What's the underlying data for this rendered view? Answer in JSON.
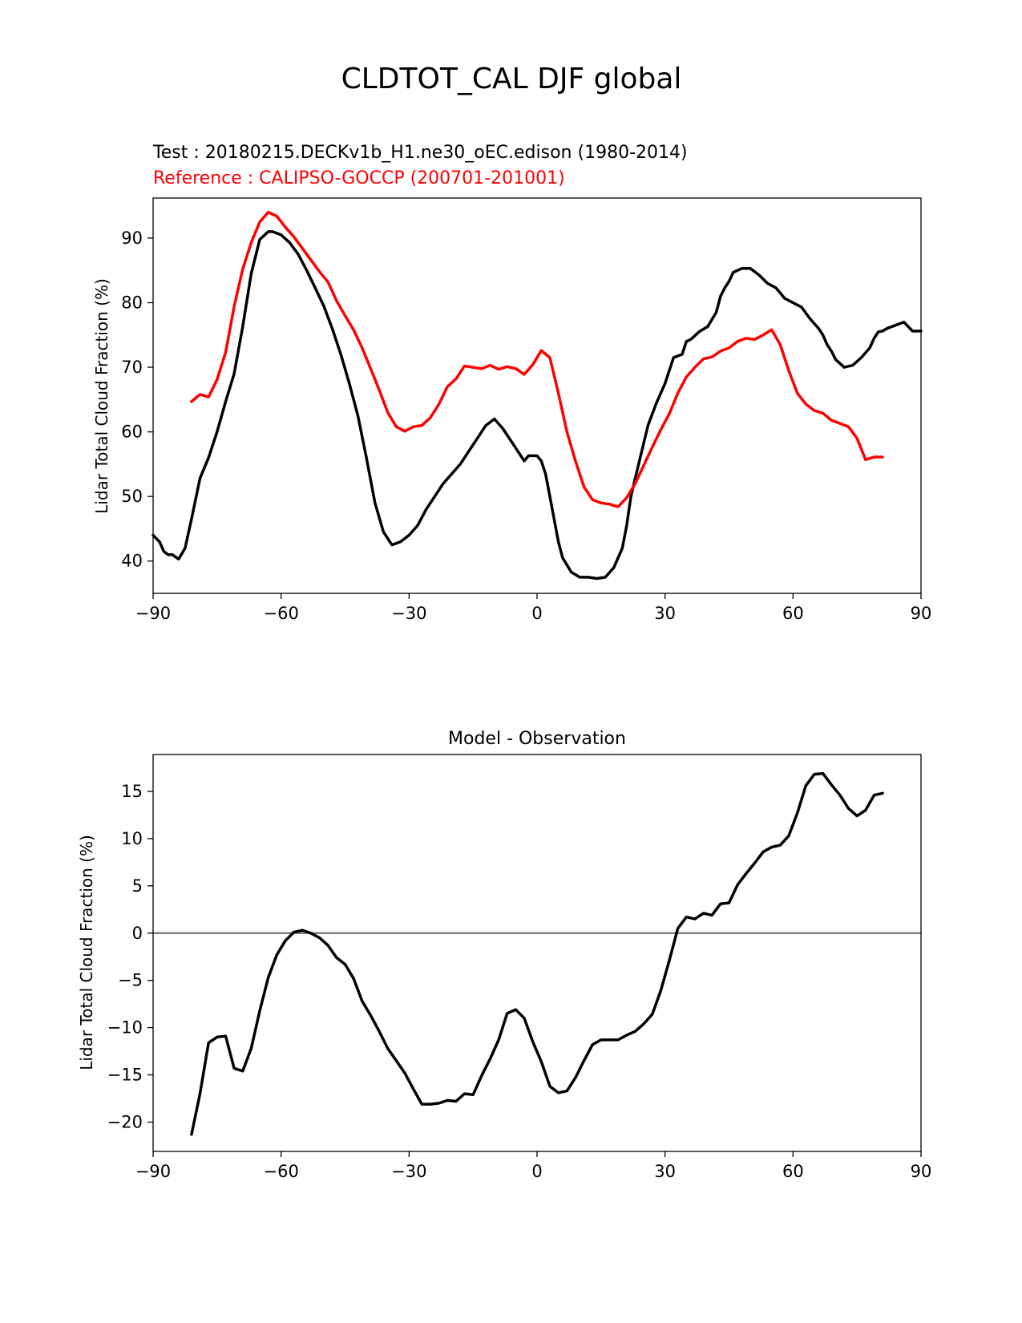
{
  "figure": {
    "suptitle": "CLDTOT_CAL DJF global"
  },
  "colors": {
    "test": "#000000",
    "reference": "#ff0000",
    "zero_line": "#808080"
  },
  "chart_data": [
    {
      "type": "line",
      "test_label": "Test : 20180215.DECKv1b_H1.ne30_oEC.edison (1980-2014)",
      "reference_label": "Reference : CALIPSO-GOCCP (200701-201001)",
      "xlabel": "",
      "ylabel": "Lidar Total Cloud Fraction (%)",
      "xlim": [
        -90,
        90
      ],
      "ylim": [
        35,
        96.2
      ],
      "xticks": [
        -90,
        -60,
        -30,
        0,
        30,
        60,
        90
      ],
      "xtick_labels": [
        "−90",
        "−60",
        "−30",
        "0",
        "30",
        "60",
        "90"
      ],
      "yticks": [
        40,
        50,
        60,
        70,
        80,
        90
      ],
      "ytick_labels": [
        "40",
        "50",
        "60",
        "70",
        "80",
        "90"
      ],
      "series": [
        {
          "name": "test",
          "x": [
            -90,
            -88.5,
            -87.5,
            -86.5,
            -85.5,
            -84,
            -82.5,
            -81,
            -79,
            -77,
            -75,
            -73,
            -71,
            -69,
            -67,
            -65,
            -63,
            -62,
            -60,
            -58,
            -56,
            -54,
            -52,
            -50,
            -48,
            -46,
            -44,
            -42,
            -40,
            -38,
            -36,
            -34,
            -32,
            -30,
            -28,
            -26,
            -24,
            -22,
            -20,
            -18,
            -16,
            -14,
            -12,
            -10,
            -8,
            -6,
            -4,
            -3,
            -2,
            -1,
            0,
            1,
            2,
            3,
            4,
            5,
            6,
            8,
            10,
            12,
            14,
            16,
            18,
            20,
            21,
            22,
            24,
            26,
            28,
            30,
            32,
            34,
            35,
            36,
            38,
            40,
            42,
            43,
            44,
            45,
            46,
            48,
            50,
            52,
            54,
            56,
            57,
            58,
            60,
            62,
            64,
            66,
            67,
            68,
            69,
            70,
            72,
            74,
            76,
            78,
            79,
            80,
            81,
            82,
            84,
            86,
            88,
            90
          ],
          "values": [
            44.0,
            43.0,
            41.5,
            41.0,
            41.0,
            40.3,
            42.0,
            46.5,
            52.8,
            56.0,
            60.0,
            64.7,
            69.0,
            76.3,
            84.5,
            89.8,
            91.0,
            91.0,
            90.5,
            89.3,
            87.5,
            85.0,
            82.3,
            79.5,
            76.0,
            72.0,
            67.5,
            62.5,
            56.0,
            49.0,
            44.5,
            42.5,
            43.0,
            44.0,
            45.5,
            48.0,
            50.0,
            52.0,
            53.5,
            55.0,
            57.0,
            59.0,
            61.0,
            62.0,
            60.5,
            58.5,
            56.5,
            55.5,
            56.3,
            56.3,
            56.3,
            55.5,
            53.5,
            50.0,
            46.5,
            43.0,
            40.5,
            38.3,
            37.5,
            37.5,
            37.3,
            37.5,
            39.0,
            42.0,
            45.5,
            50.0,
            55.5,
            61.0,
            64.5,
            67.5,
            71.5,
            72.0,
            74.0,
            74.3,
            75.5,
            76.3,
            78.5,
            81.0,
            82.3,
            83.3,
            84.7,
            85.3,
            85.3,
            84.3,
            83.0,
            82.3,
            81.5,
            80.7,
            80.0,
            79.3,
            77.5,
            76.0,
            75.0,
            73.5,
            72.5,
            71.2,
            70.0,
            70.3,
            71.5,
            73.0,
            74.5,
            75.5,
            75.6,
            76.0,
            76.5,
            77.0,
            75.6,
            75.6
          ],
          "color": "#000000"
        },
        {
          "name": "reference",
          "x": [
            -81,
            -79,
            -77,
            -75,
            -73,
            -71,
            -69,
            -67,
            -65,
            -63,
            -61,
            -59,
            -57,
            -55,
            -53,
            -51,
            -49,
            -47,
            -45,
            -43,
            -41,
            -39,
            -37,
            -35,
            -33,
            -31,
            -29,
            -27,
            -25,
            -23,
            -21,
            -19,
            -17,
            -15,
            -13,
            -11,
            -9,
            -7,
            -5,
            -3,
            -1,
            1,
            3,
            5,
            7,
            9,
            11,
            13,
            15,
            17,
            19,
            21,
            23,
            25,
            27,
            29,
            31,
            33,
            35,
            37,
            39,
            41,
            43,
            45,
            47,
            49,
            51,
            53,
            55,
            57,
            59,
            61,
            63,
            65,
            67,
            69,
            71,
            73,
            75,
            77,
            79,
            81
          ],
          "values": [
            64.7,
            65.8,
            65.4,
            68.1,
            72.3,
            79.4,
            85.2,
            89.3,
            92.5,
            94.0,
            93.4,
            91.7,
            90.2,
            88.4,
            86.6,
            84.8,
            83.2,
            80.3,
            78.0,
            75.8,
            73.0,
            69.8,
            66.5,
            63.0,
            60.8,
            60.1,
            60.8,
            61.0,
            62.2,
            64.3,
            67.0,
            68.2,
            70.2,
            70.0,
            69.8,
            70.3,
            69.7,
            70.1,
            69.8,
            68.9,
            70.4,
            72.6,
            71.5,
            66.0,
            60.0,
            55.5,
            51.5,
            49.5,
            49.0,
            48.8,
            48.4,
            49.8,
            52.0,
            54.8,
            57.6,
            60.3,
            62.8,
            66.0,
            68.5,
            70.0,
            71.3,
            71.6,
            72.5,
            73.0,
            74.0,
            74.5,
            74.3,
            75.0,
            75.8,
            73.5,
            69.5,
            66.0,
            64.3,
            63.3,
            62.9,
            61.8,
            61.3,
            60.8,
            59.0,
            55.7,
            56.1,
            56.1
          ],
          "color": "#ff0000"
        }
      ]
    },
    {
      "type": "line",
      "title": "Model - Observation",
      "xlabel": "",
      "ylabel": "Lidar Total Cloud Fraction (%)",
      "xlim": [
        -90,
        90
      ],
      "ylim": [
        -23.1,
        18.9
      ],
      "xticks": [
        -90,
        -60,
        -30,
        0,
        30,
        60,
        90
      ],
      "xtick_labels": [
        "−90",
        "−60",
        "−30",
        "0",
        "30",
        "60",
        "90"
      ],
      "yticks": [
        -20,
        -15,
        -10,
        -5,
        0,
        5,
        10,
        15
      ],
      "ytick_labels": [
        "−20",
        "−15",
        "−10",
        "−5",
        "0",
        "5",
        "10",
        "15"
      ],
      "zero_line": 0,
      "series": [
        {
          "name": "difference",
          "x": [
            -81,
            -79,
            -77,
            -75,
            -73,
            -71,
            -69,
            -67,
            -65,
            -63,
            -61,
            -59,
            -57,
            -55,
            -53,
            -51,
            -49,
            -47,
            -45,
            -43,
            -41,
            -39,
            -37,
            -35,
            -33,
            -31,
            -29,
            -27,
            -25,
            -23,
            -21,
            -19,
            -17,
            -15,
            -13,
            -11,
            -9,
            -7,
            -5,
            -3,
            -1,
            1,
            3,
            5,
            7,
            9,
            11,
            13,
            15,
            17,
            19,
            21,
            23,
            25,
            27,
            29,
            31,
            33,
            35,
            37,
            39,
            41,
            43,
            45,
            47,
            49,
            51,
            53,
            55,
            57,
            59,
            61,
            63,
            65,
            67,
            69,
            71,
            73,
            75,
            77,
            79,
            81
          ],
          "values": [
            -21.3,
            -17.0,
            -11.6,
            -11.0,
            -10.9,
            -14.3,
            -14.6,
            -12.2,
            -8.2,
            -4.7,
            -2.3,
            -0.8,
            0.1,
            0.3,
            0.0,
            -0.5,
            -1.3,
            -2.6,
            -3.3,
            -4.8,
            -7.2,
            -8.7,
            -10.4,
            -12.2,
            -13.5,
            -14.8,
            -16.5,
            -18.1,
            -18.1,
            -18.0,
            -17.7,
            -17.8,
            -17.0,
            -17.1,
            -15.1,
            -13.3,
            -11.3,
            -8.5,
            -8.1,
            -9.0,
            -11.5,
            -13.6,
            -16.2,
            -16.9,
            -16.7,
            -15.3,
            -13.5,
            -11.8,
            -11.3,
            -11.3,
            -11.3,
            -10.8,
            -10.4,
            -9.6,
            -8.6,
            -6.1,
            -2.9,
            0.5,
            1.7,
            1.5,
            2.1,
            1.9,
            3.1,
            3.2,
            5.1,
            6.3,
            7.4,
            8.6,
            9.1,
            9.3,
            10.3,
            12.7,
            15.6,
            16.8,
            16.9,
            15.7,
            14.6,
            13.2,
            12.4,
            13.0,
            14.6,
            14.8
          ],
          "color": "#000000"
        }
      ]
    }
  ]
}
